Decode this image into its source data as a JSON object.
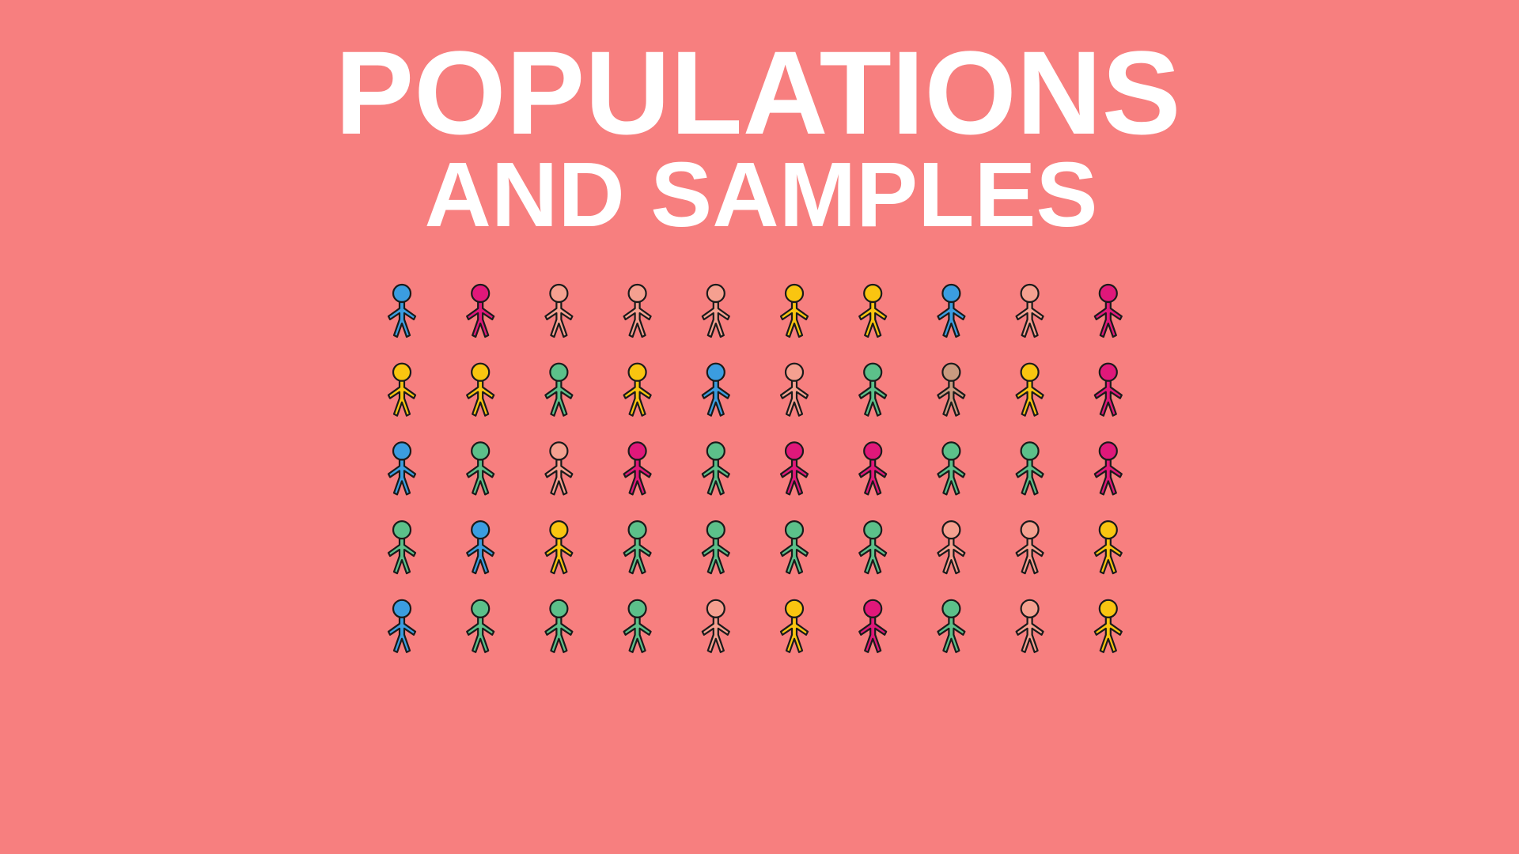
{
  "title": {
    "line1": "POPULATIONS",
    "line2": "AND SAMPLES"
  }
}
